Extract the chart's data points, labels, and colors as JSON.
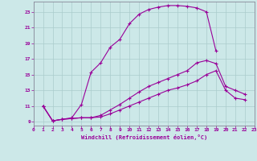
{
  "xlabel": "Windchill (Refroidissement éolien,°C)",
  "bg_color": "#cce8e8",
  "line_color": "#990099",
  "grid_color": "#aacccc",
  "xlim": [
    0,
    23
  ],
  "ylim": [
    8.5,
    24.3
  ],
  "xticks": [
    0,
    1,
    2,
    3,
    4,
    5,
    6,
    7,
    8,
    9,
    10,
    11,
    12,
    13,
    14,
    15,
    16,
    17,
    18,
    19,
    20,
    21,
    22,
    23
  ],
  "yticks": [
    9,
    11,
    13,
    15,
    17,
    19,
    21,
    23
  ],
  "line1_x": [
    1,
    2,
    3,
    4,
    5,
    6,
    7,
    8,
    9,
    10,
    11,
    12,
    13,
    14,
    15,
    16,
    17,
    18,
    19
  ],
  "line1_y": [
    11,
    9.1,
    9.3,
    9.5,
    11.2,
    15.3,
    16.5,
    18.5,
    19.5,
    21.5,
    22.7,
    23.3,
    23.6,
    23.8,
    23.8,
    23.7,
    23.5,
    23.0,
    18.0
  ],
  "line2_x": [
    1,
    2,
    3,
    4,
    5,
    6,
    7,
    8,
    9,
    10,
    11,
    12,
    13,
    14,
    15,
    16,
    17,
    18,
    19,
    20,
    21,
    22
  ],
  "line2_y": [
    11,
    9.1,
    9.3,
    9.4,
    9.5,
    9.5,
    9.8,
    10.5,
    11.2,
    12.0,
    12.8,
    13.5,
    14.0,
    14.5,
    15.0,
    15.5,
    16.5,
    16.8,
    16.4,
    13.5,
    13.0,
    12.5
  ],
  "line3_x": [
    1,
    2,
    3,
    4,
    5,
    6,
    7,
    8,
    9,
    10,
    11,
    12,
    13,
    14,
    15,
    16,
    17,
    18,
    19,
    20,
    21,
    22
  ],
  "line3_y": [
    11,
    9.1,
    9.3,
    9.4,
    9.5,
    9.5,
    9.6,
    10.0,
    10.5,
    11.0,
    11.5,
    12.0,
    12.5,
    13.0,
    13.3,
    13.7,
    14.2,
    15.0,
    15.5,
    13.0,
    12.0,
    11.8
  ]
}
